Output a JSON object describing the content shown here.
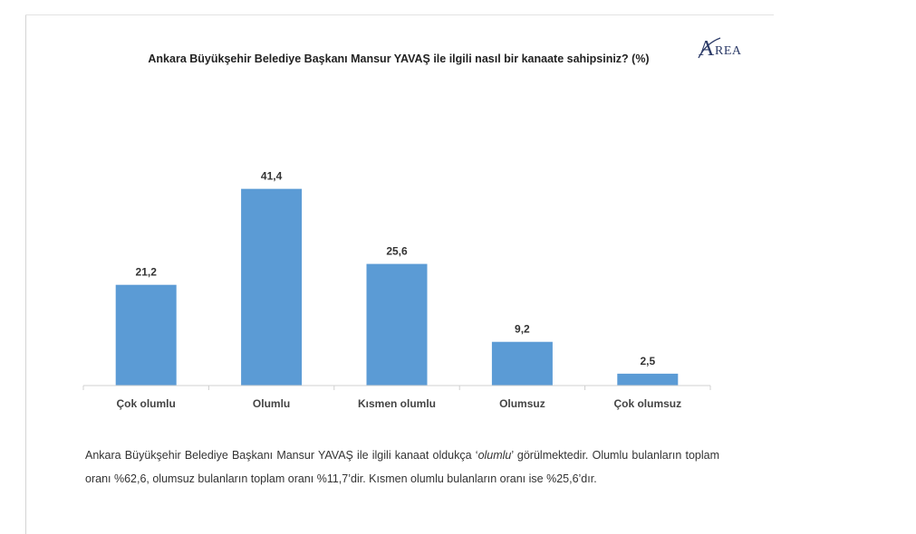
{
  "title": "Ankara Büyükşehir Belediye Başkanı Mansur YAVAŞ ile ilgili nasıl bir kanaate sahipsiniz? (%)",
  "logo": {
    "first_letter": "A",
    "rest": "REA"
  },
  "chart_data": {
    "type": "bar",
    "title": "Ankara Büyükşehir Belediye Başkanı Mansur YAVAŞ ile ilgili nasıl bir kanaate sahipsiniz? (%)",
    "categories": [
      "Çok olumlu",
      "Olumlu",
      "Kısmen olumlu",
      "Olumsuz",
      "Çok olumsuz"
    ],
    "values": [
      21.2,
      41.4,
      25.6,
      9.2,
      2.5
    ],
    "value_labels": [
      "21,2",
      "41,4",
      "25,6",
      "9,2",
      "2,5"
    ],
    "ylim": [
      0,
      45
    ],
    "grid": false,
    "bar_color": "#5b9bd5"
  },
  "paragraph": {
    "part1": "Ankara Büyükşehir Belediye Başkanı Mansur YAVAŞ ile ilgili kanaat oldukça ‘",
    "italic": "olumlu",
    "part2": "’ görülmektedir. Olumlu bulanların toplam oranı %62,6, olumsuz bulanların toplam oranı %11,7’dir. Kısmen olumlu bulanların oranı ise %25,6’dır."
  }
}
